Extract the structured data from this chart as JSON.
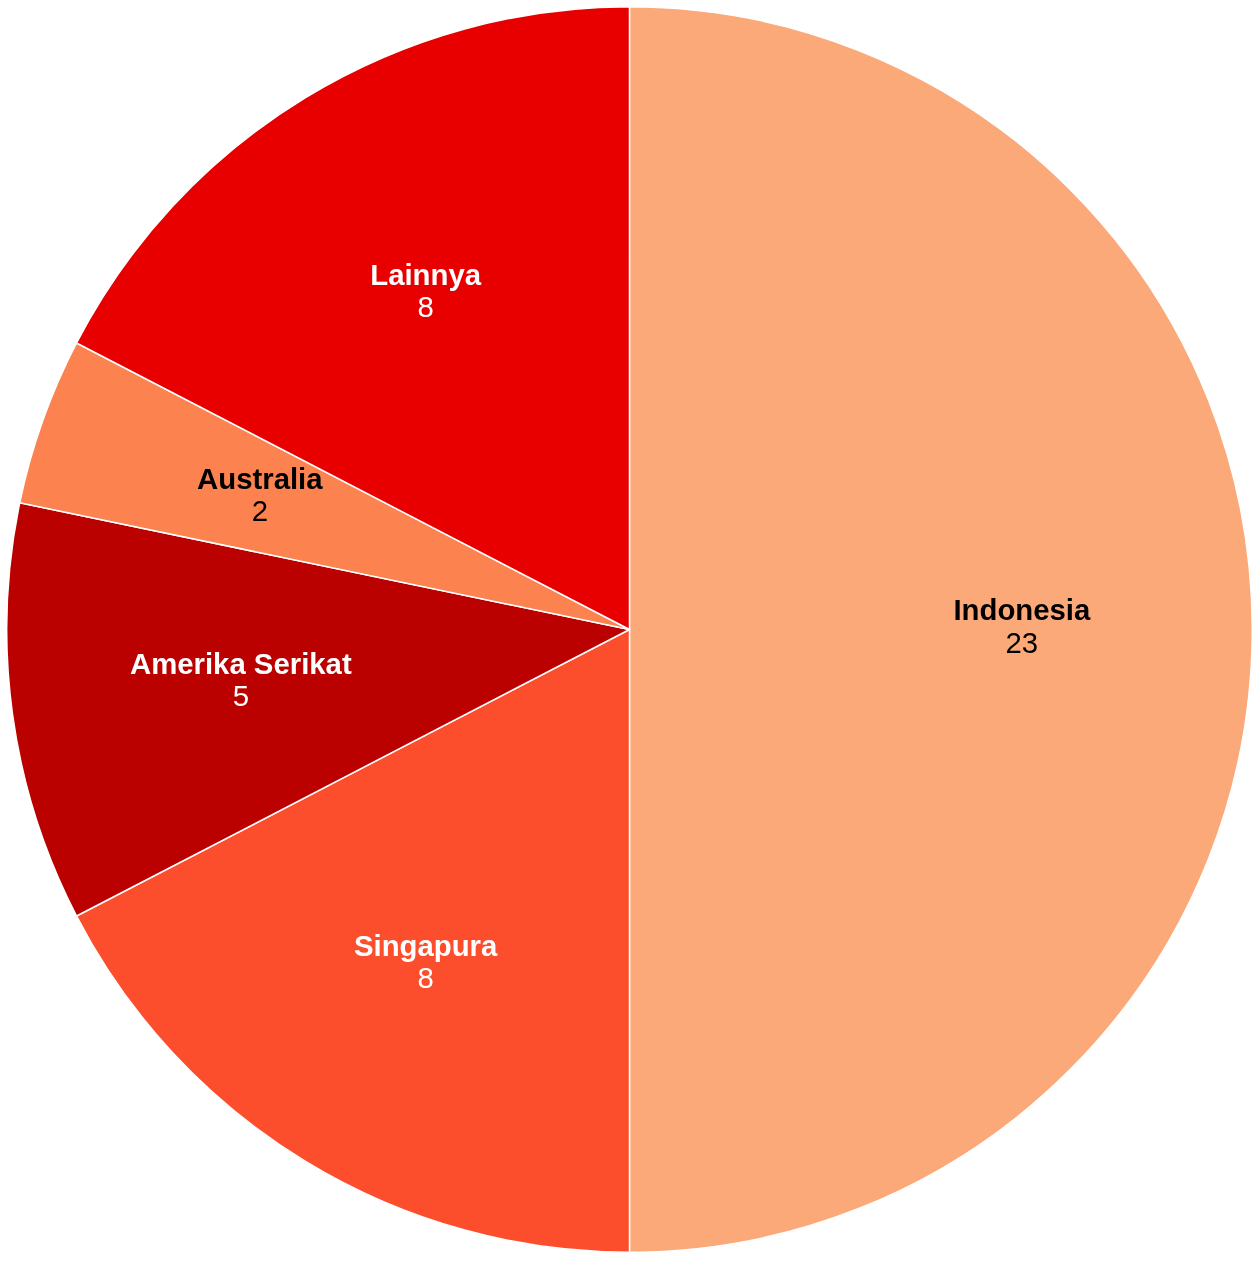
{
  "chart_data": {
    "type": "pie",
    "categories": [
      "Indonesia",
      "Singapura",
      "Amerika Serikat",
      "Australia",
      "Lainnya"
    ],
    "values": [
      23,
      8,
      5,
      2,
      8
    ],
    "colors": [
      "#fca97a",
      "#fc4e2c",
      "#bb0000",
      "#fc8250",
      "#e80000"
    ],
    "data_labels": true
  }
}
